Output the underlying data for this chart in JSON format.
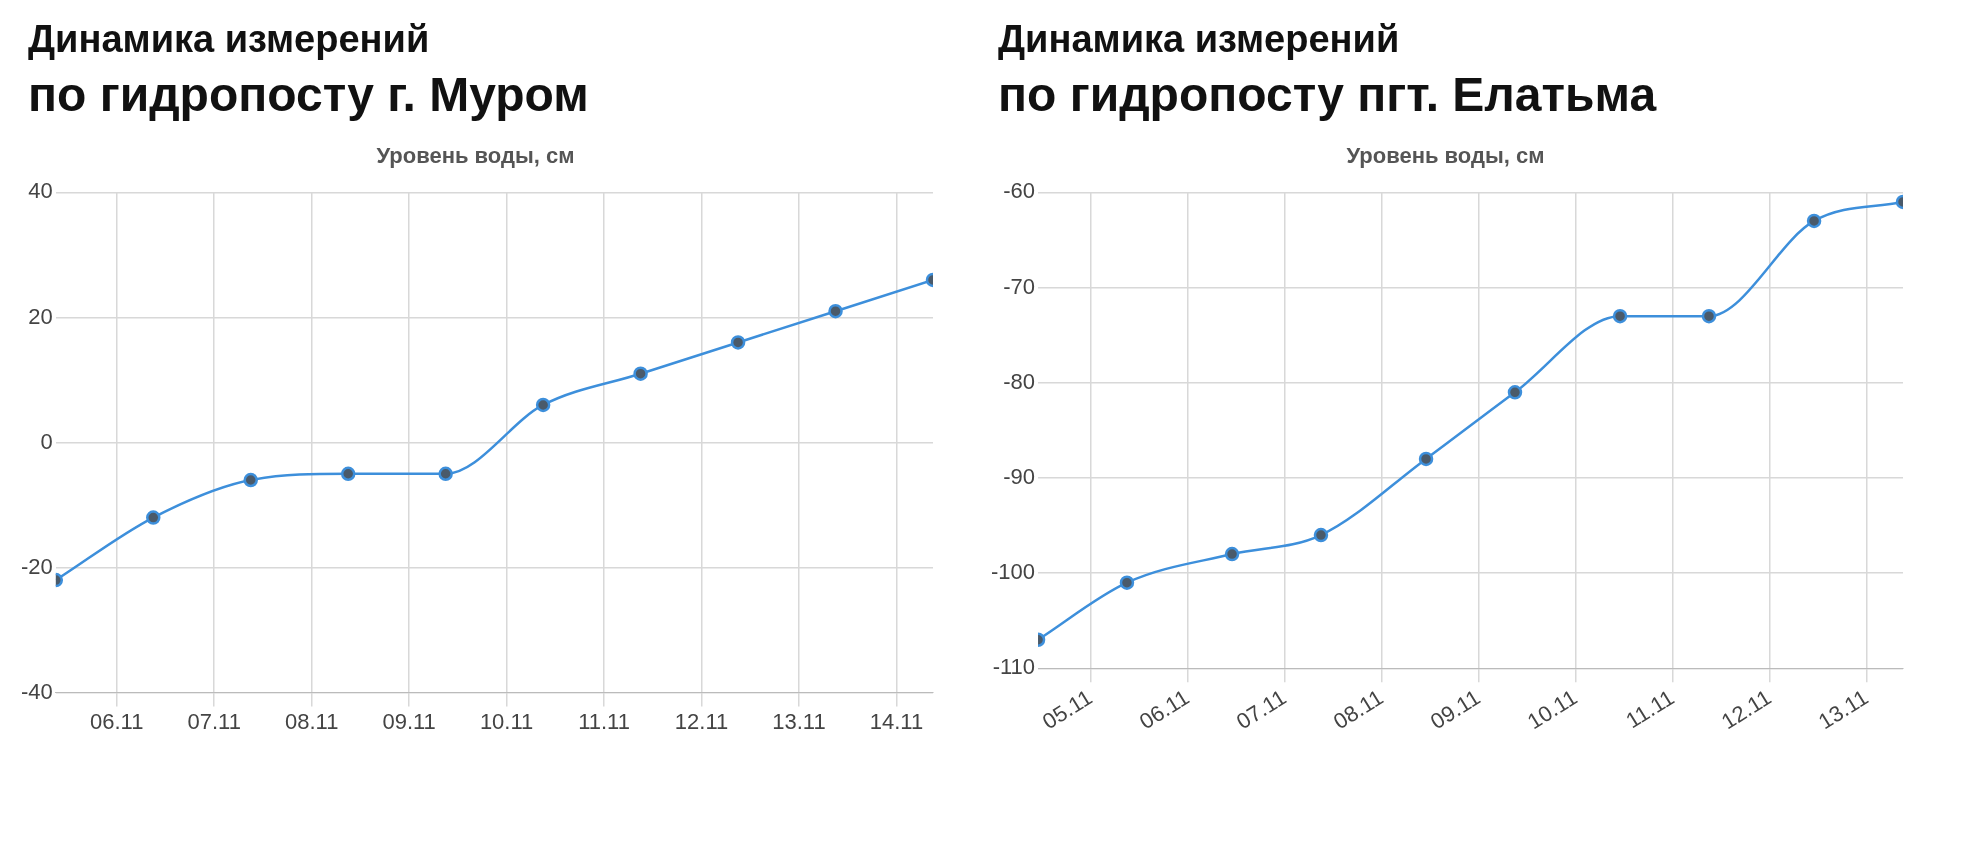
{
  "chart_data": [
    {
      "type": "line",
      "title": "Динамика измерений",
      "subtitle": "по гидропосту г. Муром",
      "ylabel": "Уровень воды, см",
      "x": [
        "--11-05T09:00",
        "--11-06T09:00",
        "--11-07T09:00",
        "--11-08T09:00",
        "--11-09T09:00",
        "--11-10T09:00",
        "--11-11T09:00",
        "--11-12T09:00",
        "--11-13T09:00",
        "--11-14T09:00"
      ],
      "series": [
        {
          "color": "#3d8fdb",
          "values": [
            -22,
            -12,
            -6,
            -5,
            -5,
            6,
            11,
            16,
            21,
            26
          ]
        }
      ],
      "xlim": [
        "--11-05T09:00",
        "--11-14T09:00"
      ],
      "xticks": [
        {
          "value": "--11-06",
          "label": "06.11"
        },
        {
          "value": "--11-07",
          "label": "07.11"
        },
        {
          "value": "--11-08",
          "label": "08.11"
        },
        {
          "value": "--11-09",
          "label": "09.11"
        },
        {
          "value": "--11-10",
          "label": "10.11"
        },
        {
          "value": "--11-11",
          "label": "11.11"
        },
        {
          "value": "--11-12",
          "label": "12.11"
        },
        {
          "value": "--11-13",
          "label": "13.11"
        },
        {
          "value": "--11-14",
          "label": "14.11"
        }
      ],
      "ylim": [
        -40,
        40
      ],
      "yticks": [
        -40,
        -20,
        0,
        20,
        40
      ],
      "grid": true,
      "legend": false,
      "marker": "circle",
      "line_style": "solid"
    },
    {
      "type": "line",
      "title": "Динамика измерений",
      "subtitle": "по гидропосту пгт. Елатьма",
      "ylabel": "Уровень воды, см",
      "x": [
        "--11-04T11:00",
        "--11-05T09:00",
        "--11-06T11:00",
        "--11-07T09:00",
        "--11-08T11:00",
        "--11-09T09:00",
        "--11-10T11:00",
        "--11-11T09:00",
        "--11-12T11:00",
        "--11-13T09:00"
      ],
      "series": [
        {
          "color": "#3d8fdb",
          "values": [
            -107,
            -101,
            -98,
            -96,
            -88,
            -81,
            -73,
            -73,
            -63,
            -61
          ]
        }
      ],
      "xlim": [
        "--11-04T11:00",
        "--11-13T09:00"
      ],
      "xticks": [
        {
          "value": "--11-05",
          "label": "05.11"
        },
        {
          "value": "--11-06",
          "label": "06.11"
        },
        {
          "value": "--11-07",
          "label": "07.11"
        },
        {
          "value": "--11-08",
          "label": "08.11"
        },
        {
          "value": "--11-09",
          "label": "09.11"
        },
        {
          "value": "--11-10",
          "label": "10.11"
        },
        {
          "value": "--11-11",
          "label": "11.11"
        },
        {
          "value": "--11-12",
          "label": "12.11"
        },
        {
          "value": "--11-13",
          "label": "13.11"
        }
      ],
      "ylim": [
        -110,
        -60
      ],
      "yticks": [
        -110,
        -100,
        -90,
        -80,
        -70,
        -60
      ],
      "grid": true,
      "legend": false,
      "marker": "circle",
      "line_style": "solid"
    }
  ]
}
